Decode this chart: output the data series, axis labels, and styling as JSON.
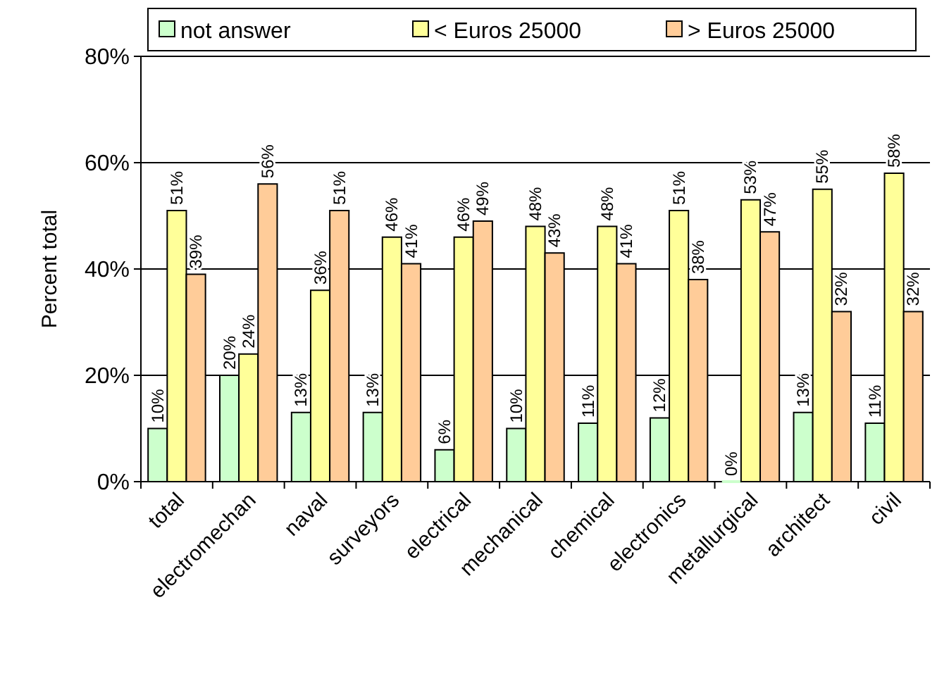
{
  "chart_data": {
    "type": "bar",
    "ylabel": "Percent total",
    "categories": [
      "total",
      "electromechan",
      "naval",
      "surveyors",
      "electrical",
      "mechanical",
      "chemical",
      "electronics",
      "metallurgical",
      "architect",
      "civil"
    ],
    "series": [
      {
        "name": "not answer",
        "color": "#ccffcc",
        "values": [
          10,
          20,
          13,
          13,
          6,
          10,
          11,
          12,
          0,
          13,
          11
        ],
        "value_labels": [
          "10%",
          "20%",
          "13%",
          "13%",
          "6%",
          "10%",
          "11%",
          "12%",
          "0%",
          "13%",
          "11%"
        ]
      },
      {
        "name": "< Euros 25000",
        "color": "#ffff99",
        "values": [
          51,
          24,
          36,
          46,
          46,
          48,
          48,
          51,
          53,
          55,
          58
        ],
        "value_labels": [
          "51%",
          "24%",
          "36%",
          "46%",
          "46%",
          "48%",
          "48%",
          "51%",
          "53%",
          "55%",
          "58%"
        ]
      },
      {
        "name": "> Euros 25000",
        "color": "#ffcc99",
        "values": [
          39,
          56,
          51,
          41,
          49,
          43,
          41,
          38,
          47,
          32,
          32
        ],
        "value_labels": [
          "39%",
          "56%",
          "51%",
          "41%",
          "49%",
          "43%",
          "41%",
          "38%",
          "47%",
          "32%",
          "32%"
        ]
      }
    ],
    "ylim": [
      0,
      80
    ],
    "yticks": [
      {
        "value": 0,
        "label": "0%"
      },
      {
        "value": 20,
        "label": "20%"
      },
      {
        "value": 40,
        "label": "40%"
      },
      {
        "value": 60,
        "label": "60%"
      },
      {
        "value": 80,
        "label": "80%"
      }
    ],
    "grid": "y",
    "legend": "top"
  }
}
